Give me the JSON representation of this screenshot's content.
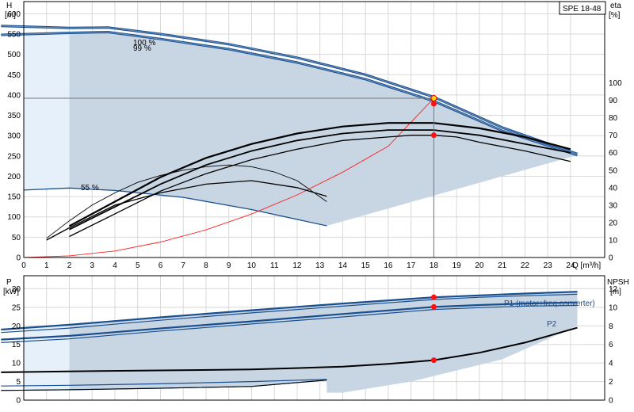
{
  "model_label": "SPE 18-48",
  "chart_data": [
    {
      "type": "line",
      "panel": "top",
      "left_axis": {
        "label": "H",
        "unit": "[m]",
        "ticks": [
          0,
          50,
          100,
          150,
          200,
          250,
          300,
          350,
          400,
          450,
          500,
          550,
          600
        ],
        "range": [
          0,
          630
        ]
      },
      "right_axis": {
        "label": "eta",
        "unit": "[%]",
        "ticks": [
          0,
          10,
          20,
          30,
          40,
          50,
          60,
          70,
          80,
          90,
          100
        ]
      },
      "x_axis": {
        "label": "Q [m³/h]",
        "ticks": [
          0,
          1,
          2,
          3,
          4,
          5,
          6,
          7,
          8,
          9,
          10,
          11,
          12,
          13,
          14,
          15,
          16,
          17,
          18,
          19,
          20,
          21,
          22,
          23,
          24
        ],
        "range": [
          0,
          25.5
        ]
      },
      "annotations": [
        "100 %",
        "99 %",
        "55 %"
      ],
      "operating_point": {
        "x": 18,
        "head": 392,
        "eta": 70
      },
      "series": [
        {
          "name": "100 %",
          "role": "head",
          "x": [
            -1,
            2,
            3.7,
            6,
            9,
            12,
            15,
            18,
            21,
            24.3
          ],
          "y": [
            570,
            565,
            566,
            550,
            525,
            492,
            450,
            395,
            320,
            255
          ]
        },
        {
          "name": "99 %",
          "role": "head",
          "x": [
            -1,
            2,
            3.7,
            6,
            9,
            12,
            15,
            18,
            21,
            24.3
          ],
          "y": [
            548,
            553,
            555,
            538,
            513,
            480,
            439,
            385,
            312,
            252
          ]
        },
        {
          "name": "55 %",
          "role": "head",
          "x": [
            0,
            2,
            4,
            7,
            10,
            13.3
          ],
          "y": [
            166,
            171,
            165,
            148,
            118,
            78
          ]
        },
        {
          "role": "system",
          "x": [
            0,
            2,
            4,
            6,
            8,
            10,
            12,
            14,
            16,
            18
          ],
          "y": [
            0,
            4,
            16,
            38,
            68,
            107,
            154,
            210,
            274,
            392
          ]
        },
        {
          "role": "eta",
          "x": [
            1,
            2,
            3,
            4,
            5,
            6,
            7,
            8,
            9,
            10,
            11,
            12,
            13.3
          ],
          "y": [
            11,
            21,
            30,
            37,
            43,
            47,
            50,
            52,
            53,
            52,
            49,
            44,
            32
          ]
        },
        {
          "role": "eta",
          "x": [
            1,
            2,
            4,
            6,
            8,
            10,
            12,
            13.3
          ],
          "y": [
            10,
            17,
            30,
            37,
            42,
            44,
            40,
            35
          ]
        },
        {
          "role": "eta",
          "x": [
            2,
            4,
            6,
            8,
            10,
            12,
            14,
            16,
            17,
            18,
            19,
            20,
            22,
            24
          ],
          "y": [
            12,
            25,
            38,
            48,
            56,
            62,
            67,
            69,
            70,
            70,
            69,
            66,
            61,
            55
          ]
        },
        {
          "role": "eta",
          "x": [
            2,
            4,
            6,
            8,
            10,
            12,
            14,
            16,
            18,
            20,
            22,
            24
          ],
          "y": [
            16,
            29,
            42,
            53,
            61,
            67,
            71,
            73,
            73,
            70,
            65,
            60
          ]
        },
        {
          "role": "eta",
          "x": [
            2,
            4,
            6,
            8,
            10,
            12,
            14,
            16,
            18,
            20,
            22,
            24
          ],
          "y": [
            18,
            32,
            46,
            57,
            65,
            71,
            75,
            77,
            77,
            74,
            69,
            62
          ]
        }
      ]
    },
    {
      "type": "line",
      "panel": "bottom",
      "left_axis": {
        "label": "P",
        "unit": "[kW]",
        "ticks": [
          0,
          5,
          10,
          15,
          20,
          25,
          30
        ],
        "range": [
          0,
          33.5
        ]
      },
      "right_axis": {
        "label": "NPSH",
        "unit": "[m]",
        "ticks": [
          0,
          2,
          4,
          6,
          8,
          10,
          12
        ],
        "range": [
          0,
          13.4
        ]
      },
      "annotations": [
        "P1 (motor+freq.converter)",
        "P2"
      ],
      "operating_point": {
        "x": 18,
        "p1": 27.7,
        "p2": 25.1,
        "npsh": 4.3
      },
      "series": [
        {
          "name": "P1 (motor+freq.converter)",
          "role": "power",
          "x": [
            -1,
            2,
            6,
            10,
            14,
            18,
            20,
            22,
            24.3
          ],
          "y": [
            19,
            20.3,
            22.3,
            24.2,
            26,
            27.7,
            28.2,
            28.7,
            29.2
          ]
        },
        {
          "role": "power",
          "x": [
            -1,
            2,
            6,
            10,
            14,
            18,
            20,
            22,
            24.3
          ],
          "y": [
            18.2,
            19.4,
            21.5,
            23.5,
            25.3,
            27.1,
            27.7,
            28.1,
            28.5
          ]
        },
        {
          "name": "P2",
          "role": "power",
          "x": [
            -1,
            2,
            6,
            10,
            14,
            18,
            20,
            22,
            24.3
          ],
          "y": [
            16.3,
            17.3,
            19.3,
            21.2,
            23.2,
            25.1,
            25.6,
            26,
            26.3
          ]
        },
        {
          "role": "power",
          "x": [
            -1,
            2,
            6,
            10,
            14,
            18,
            20,
            22,
            24.3
          ],
          "y": [
            15.5,
            16.5,
            18.6,
            20.5,
            22.4,
            24.4,
            24.9,
            25.3,
            25.5
          ]
        },
        {
          "role": "power",
          "x": [
            -1,
            2,
            6,
            10,
            13.3
          ],
          "y": [
            3.8,
            4,
            4.4,
            5,
            5.6
          ]
        },
        {
          "role": "power",
          "x": [
            -1,
            2,
            6,
            10,
            13.3
          ],
          "y": [
            2.6,
            2.8,
            3.2,
            3.7,
            5.4
          ]
        },
        {
          "role": "npsh",
          "x": [
            -1,
            2,
            6,
            10,
            14,
            16,
            18,
            20,
            22,
            24.3
          ],
          "y": [
            3,
            3.1,
            3.2,
            3.3,
            3.6,
            3.9,
            4.3,
            5.1,
            6.2,
            7.8
          ]
        }
      ]
    }
  ]
}
